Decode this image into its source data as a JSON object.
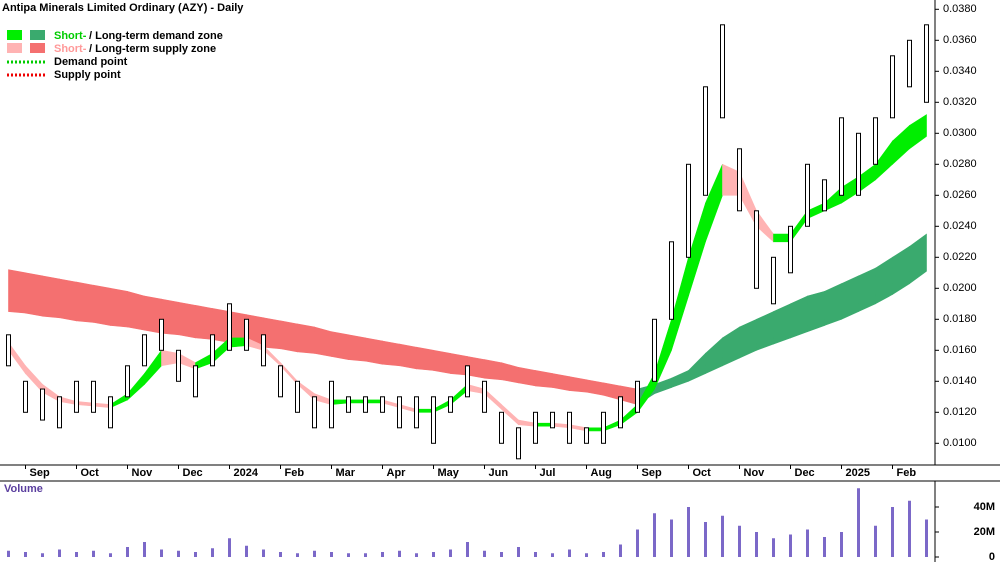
{
  "chart_data": {
    "type": "range-bar",
    "title": "Antipa Minerals Limited Ordinary (AZY) - Daily",
    "legend": [
      {
        "short": "Short-",
        "rest": " / Long-term demand zone"
      },
      {
        "short": "Short-",
        "rest": " / Long-term supply zone"
      },
      {
        "rest": "Demand point"
      },
      {
        "rest": "Supply point"
      }
    ],
    "categories": [
      null,
      "Sep",
      null,
      null,
      "Oct",
      null,
      null,
      "Nov",
      null,
      null,
      "Dec",
      null,
      null,
      "2024",
      null,
      null,
      "Feb",
      null,
      null,
      "Mar",
      null,
      null,
      "Apr",
      null,
      null,
      "May",
      null,
      null,
      "Jun",
      null,
      null,
      "Jul",
      null,
      null,
      "Aug",
      null,
      null,
      "Sep",
      null,
      null,
      "Oct",
      null,
      null,
      "Nov",
      null,
      null,
      "Dec",
      null,
      null,
      "2025",
      null,
      null,
      "Feb",
      null,
      null
    ],
    "high": [
      0.017,
      0.014,
      0.0135,
      0.013,
      0.014,
      0.014,
      0.013,
      0.015,
      0.017,
      0.018,
      0.016,
      0.015,
      0.017,
      0.019,
      0.018,
      0.017,
      0.015,
      0.014,
      0.013,
      0.014,
      0.013,
      0.013,
      0.013,
      0.013,
      0.013,
      0.013,
      0.013,
      0.015,
      0.014,
      0.012,
      0.011,
      0.012,
      0.012,
      0.012,
      0.011,
      0.012,
      0.013,
      0.014,
      0.018,
      0.023,
      0.028,
      0.033,
      0.037,
      0.029,
      0.025,
      0.022,
      0.024,
      0.028,
      0.027,
      0.031,
      0.03,
      0.031,
      0.035,
      0.036,
      0.037
    ],
    "low": [
      0.015,
      0.012,
      0.0115,
      0.011,
      0.012,
      0.012,
      0.011,
      0.013,
      0.015,
      0.016,
      0.014,
      0.013,
      0.015,
      0.016,
      0.016,
      0.015,
      0.013,
      0.012,
      0.011,
      0.011,
      0.012,
      0.012,
      0.012,
      0.011,
      0.011,
      0.01,
      0.012,
      0.013,
      0.012,
      0.01,
      0.009,
      0.01,
      0.011,
      0.01,
      0.01,
      0.01,
      0.011,
      0.012,
      0.014,
      0.018,
      0.022,
      0.026,
      0.031,
      0.025,
      0.02,
      0.019,
      0.021,
      0.024,
      0.025,
      0.026,
      0.026,
      0.028,
      0.031,
      0.033,
      0.032
    ],
    "zones": [
      {
        "name": "short",
        "demand_color": "#00ee00",
        "supply_color": "#ffb3b3",
        "upper": [
          0.0165,
          0.015,
          0.0138,
          0.013,
          0.0127,
          0.0126,
          0.0125,
          0.0132,
          0.0145,
          0.016,
          0.0158,
          0.0152,
          0.0158,
          0.0168,
          0.0168,
          0.0163,
          0.0152,
          0.014,
          0.0132,
          0.0128,
          0.0128,
          0.0128,
          0.0128,
          0.0125,
          0.0122,
          0.0122,
          0.0128,
          0.0138,
          0.0135,
          0.0125,
          0.0115,
          0.0113,
          0.0113,
          0.0112,
          0.011,
          0.011,
          0.0115,
          0.0125,
          0.0145,
          0.018,
          0.022,
          0.0255,
          0.028,
          0.0275,
          0.025,
          0.0235,
          0.0235,
          0.025,
          0.0255,
          0.0265,
          0.0272,
          0.028,
          0.0295,
          0.0305,
          0.0312
        ],
        "lower": [
          0.016,
          0.0145,
          0.0133,
          0.0127,
          0.0125,
          0.0124,
          0.0123,
          0.0128,
          0.0138,
          0.015,
          0.0152,
          0.0148,
          0.0152,
          0.0162,
          0.0163,
          0.016,
          0.015,
          0.0138,
          0.0128,
          0.0125,
          0.0126,
          0.0126,
          0.0126,
          0.0123,
          0.012,
          0.012,
          0.0125,
          0.0134,
          0.0132,
          0.0122,
          0.0112,
          0.0111,
          0.0111,
          0.011,
          0.0108,
          0.0108,
          0.0112,
          0.012,
          0.0135,
          0.016,
          0.0195,
          0.023,
          0.026,
          0.026,
          0.024,
          0.023,
          0.023,
          0.0245,
          0.025,
          0.0255,
          0.0262,
          0.027,
          0.028,
          0.029,
          0.0298
        ]
      },
      {
        "name": "long",
        "demand_color": "#3aaa6e",
        "supply_color": "#f47070",
        "upper": [
          0.0212,
          0.021,
          0.0208,
          0.0206,
          0.0204,
          0.0202,
          0.02,
          0.0198,
          0.0195,
          0.0193,
          0.0191,
          0.0189,
          0.0187,
          0.0185,
          0.0183,
          0.0181,
          0.0179,
          0.0177,
          0.0175,
          0.0172,
          0.017,
          0.0168,
          0.0166,
          0.0164,
          0.0162,
          0.016,
          0.0158,
          0.0156,
          0.0154,
          0.0152,
          0.0149,
          0.0147,
          0.0145,
          0.0143,
          0.0141,
          0.0139,
          0.0137,
          0.0135,
          0.0138,
          0.0142,
          0.0147,
          0.0158,
          0.0168,
          0.0175,
          0.018,
          0.0185,
          0.019,
          0.0195,
          0.0198,
          0.0203,
          0.0208,
          0.0213,
          0.022,
          0.0227,
          0.0235
        ],
        "lower": [
          0.0185,
          0.0184,
          0.0182,
          0.0181,
          0.0179,
          0.0178,
          0.0176,
          0.0175,
          0.0173,
          0.0171,
          0.017,
          0.0168,
          0.0167,
          0.0165,
          0.0164,
          0.0162,
          0.0161,
          0.0159,
          0.0158,
          0.0156,
          0.0154,
          0.0153,
          0.0151,
          0.015,
          0.0148,
          0.0147,
          0.0145,
          0.0144,
          0.0142,
          0.0141,
          0.0139,
          0.0137,
          0.0136,
          0.0134,
          0.0133,
          0.0131,
          0.0128,
          0.0125,
          0.0132,
          0.0136,
          0.014,
          0.0145,
          0.015,
          0.0155,
          0.016,
          0.0164,
          0.0168,
          0.0172,
          0.0176,
          0.018,
          0.0185,
          0.019,
          0.0196,
          0.0203,
          0.0211
        ]
      }
    ],
    "ylim": [
      0.0086,
      0.0386
    ],
    "yticks": [
      {
        "value": 0.01,
        "label": "0.0100"
      },
      {
        "value": 0.012,
        "label": "0.0120"
      },
      {
        "value": 0.014,
        "label": "0.0140"
      },
      {
        "value": 0.016,
        "label": "0.0160"
      },
      {
        "value": 0.018,
        "label": "0.0180"
      },
      {
        "value": 0.02,
        "label": "0.0200"
      },
      {
        "value": 0.022,
        "label": "0.0220"
      },
      {
        "value": 0.024,
        "label": "0.0240"
      },
      {
        "value": 0.026,
        "label": "0.0260"
      },
      {
        "value": 0.028,
        "label": "0.0280"
      },
      {
        "value": 0.03,
        "label": "0.0300"
      },
      {
        "value": 0.032,
        "label": "0.0320"
      },
      {
        "value": 0.034,
        "label": "0.0340"
      },
      {
        "value": 0.036,
        "label": "0.0360"
      },
      {
        "value": 0.038,
        "label": "0.0380"
      }
    ],
    "volume": {
      "title": "Volume",
      "color": "#7b68c8",
      "values": [
        5000000,
        4000000,
        3000000,
        6000000,
        4000000,
        5000000,
        3000000,
        8000000,
        12000000,
        6000000,
        5000000,
        4000000,
        7000000,
        15000000,
        9000000,
        6000000,
        4000000,
        3000000,
        5000000,
        4000000,
        3000000,
        3000000,
        4000000,
        5000000,
        3000000,
        4000000,
        6000000,
        12000000,
        5000000,
        4000000,
        8000000,
        4000000,
        3000000,
        6000000,
        3000000,
        4000000,
        10000000,
        22000000,
        35000000,
        30000000,
        40000000,
        28000000,
        33000000,
        25000000,
        20000000,
        15000000,
        18000000,
        22000000,
        16000000,
        20000000,
        55000000,
        25000000,
        40000000,
        45000000,
        30000000
      ],
      "ylim": [
        0,
        60000000
      ],
      "yticks": [
        0,
        {
          "value": 20000000,
          "label": "20M"
        },
        {
          "value": 40000000,
          "label": "40M"
        }
      ]
    }
  }
}
